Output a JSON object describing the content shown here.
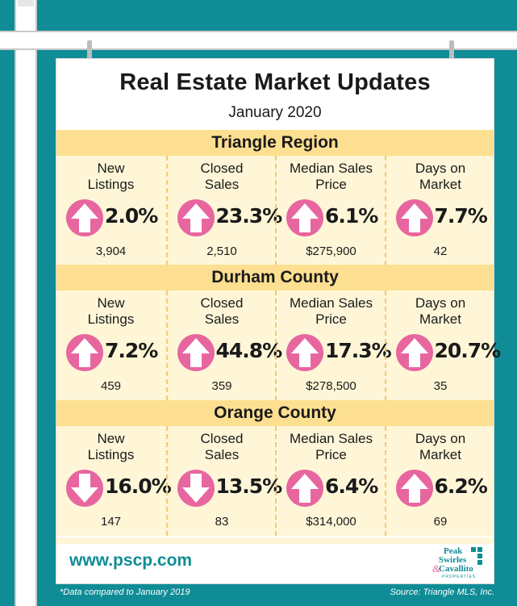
{
  "header": {
    "title": "Real Estate Market Updates",
    "subtitle": "January 2020"
  },
  "colors": {
    "teal": "#0f8c96",
    "band": "#fddf91",
    "panel": "#fff6d8",
    "arrow": "#e8669f"
  },
  "sections": [
    {
      "name": "Triangle Region",
      "stats": [
        {
          "label": [
            "New",
            "Listings"
          ],
          "direction": "up",
          "icon": "arrow-up-icon",
          "percent": "2.0%",
          "value": "3,904"
        },
        {
          "label": [
            "Closed",
            "Sales"
          ],
          "direction": "up",
          "icon": "arrow-up-icon",
          "percent": "23.3%",
          "value": "2,510"
        },
        {
          "label": [
            "Median Sales",
            "Price"
          ],
          "direction": "up",
          "icon": "arrow-up-icon",
          "percent": "6.1%",
          "value": "$275,900"
        },
        {
          "label": [
            "Days on",
            "Market"
          ],
          "direction": "up",
          "icon": "arrow-up-icon",
          "percent": "7.7%",
          "value": "42"
        }
      ]
    },
    {
      "name": "Durham County",
      "stats": [
        {
          "label": [
            "New",
            "Listings"
          ],
          "direction": "up",
          "icon": "arrow-up-icon",
          "percent": "7.2%",
          "value": "459"
        },
        {
          "label": [
            "Closed",
            "Sales"
          ],
          "direction": "up",
          "icon": "arrow-up-icon",
          "percent": "44.8%",
          "value": "359"
        },
        {
          "label": [
            "Median Sales",
            "Price"
          ],
          "direction": "up",
          "icon": "arrow-up-icon",
          "percent": "17.3%",
          "value": "$278,500"
        },
        {
          "label": [
            "Days on",
            "Market"
          ],
          "direction": "up",
          "icon": "arrow-up-icon",
          "percent": "20.7%",
          "value": "35"
        }
      ]
    },
    {
      "name": "Orange County",
      "stats": [
        {
          "label": [
            "New",
            "Listings"
          ],
          "direction": "down",
          "icon": "arrow-down-icon",
          "percent": "16.0%",
          "value": "147"
        },
        {
          "label": [
            "Closed",
            "Sales"
          ],
          "direction": "down",
          "icon": "arrow-down-icon",
          "percent": "13.5%",
          "value": "83"
        },
        {
          "label": [
            "Median Sales",
            "Price"
          ],
          "direction": "up",
          "icon": "arrow-up-icon",
          "percent": "6.4%",
          "value": "$314,000"
        },
        {
          "label": [
            "Days on",
            "Market"
          ],
          "direction": "up",
          "icon": "arrow-up-icon",
          "percent": "6.2%",
          "value": "69"
        }
      ]
    }
  ],
  "footer": {
    "url": "www.pscp.com",
    "logo": {
      "line1": "Peak",
      "line2": "Swirles",
      "amp": "&",
      "line3": "Cavallito",
      "line4": "PROPERTIES"
    },
    "note_left": "*Data compared to January 2019",
    "note_right": "Source: Triangle MLS, Inc."
  }
}
